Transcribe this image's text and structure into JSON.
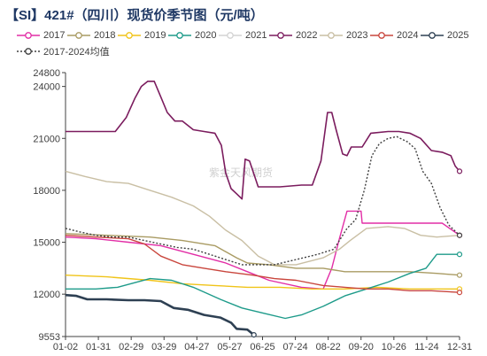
{
  "title": "【SI】421#（四川）现货价季节图（元/吨）",
  "chart_data": {
    "type": "line",
    "title": "【SI】421#（四川）现货价季节图（元/吨）",
    "xlabel": "",
    "ylabel": "",
    "ylim": [
      9553,
      24800
    ],
    "yticks": [
      9553,
      12000,
      15000,
      18000,
      21000,
      24000,
      24800
    ],
    "xticks": [
      "01-02",
      "01-31",
      "02-29",
      "03-29",
      "04-27",
      "05-27",
      "06-25",
      "07-24",
      "08-22",
      "09-20",
      "10-26",
      "11-24",
      "12-31"
    ],
    "xlim_day": [
      2,
      366
    ],
    "watermark": "紫金天风期货",
    "legend_position": "top",
    "series": [
      {
        "name": "2017",
        "color": "#e22ea6",
        "dash": "none",
        "width": 1.4,
        "marker": "circle",
        "points": [
          [
            2,
            15300
          ],
          [
            30,
            15200
          ],
          [
            60,
            15000
          ],
          [
            90,
            14800
          ],
          [
            120,
            14300
          ],
          [
            150,
            13800
          ],
          [
            170,
            13300
          ],
          [
            190,
            12800
          ],
          [
            220,
            12400
          ],
          [
            240,
            12300
          ],
          [
            248,
            13500
          ],
          [
            255,
            15200
          ],
          [
            262,
            16800
          ],
          [
            275,
            16800
          ],
          [
            276,
            16100
          ],
          [
            300,
            16100
          ],
          [
            330,
            16100
          ],
          [
            350,
            16100
          ],
          [
            366,
            15400
          ]
        ]
      },
      {
        "name": "2018",
        "color": "#a99b63",
        "dash": "none",
        "width": 1.4,
        "marker": "circle",
        "points": [
          [
            2,
            15500
          ],
          [
            40,
            15400
          ],
          [
            80,
            15300
          ],
          [
            110,
            15100
          ],
          [
            140,
            14800
          ],
          [
            160,
            14100
          ],
          [
            170,
            13800
          ],
          [
            190,
            13700
          ],
          [
            215,
            13500
          ],
          [
            240,
            13500
          ],
          [
            260,
            13300
          ],
          [
            280,
            13300
          ],
          [
            300,
            13300
          ],
          [
            320,
            13300
          ],
          [
            345,
            13200
          ],
          [
            366,
            13100
          ]
        ]
      },
      {
        "name": "2019",
        "color": "#f0c419",
        "dash": "none",
        "width": 1.4,
        "marker": "circle",
        "points": [
          [
            2,
            13100
          ],
          [
            40,
            13000
          ],
          [
            80,
            12800
          ],
          [
            110,
            12600
          ],
          [
            140,
            12500
          ],
          [
            170,
            12400
          ],
          [
            200,
            12400
          ],
          [
            230,
            12300
          ],
          [
            260,
            12300
          ],
          [
            290,
            12400
          ],
          [
            320,
            12300
          ],
          [
            345,
            12300
          ],
          [
            366,
            12300
          ]
        ]
      },
      {
        "name": "2020",
        "color": "#1e9b8a",
        "dash": "none",
        "width": 1.4,
        "marker": "circle",
        "points": [
          [
            2,
            12300
          ],
          [
            30,
            12300
          ],
          [
            50,
            12400
          ],
          [
            80,
            12900
          ],
          [
            100,
            12800
          ],
          [
            120,
            12400
          ],
          [
            145,
            11700
          ],
          [
            165,
            11200
          ],
          [
            185,
            10900
          ],
          [
            205,
            10600
          ],
          [
            220,
            10800
          ],
          [
            240,
            11300
          ],
          [
            260,
            11900
          ],
          [
            280,
            12300
          ],
          [
            300,
            12700
          ],
          [
            320,
            13200
          ],
          [
            335,
            13500
          ],
          [
            345,
            14300
          ],
          [
            366,
            14300
          ]
        ]
      },
      {
        "name": "2021",
        "color": "#d3d3d3",
        "dash": "none",
        "width": 1.4,
        "marker": "circle",
        "points": []
      },
      {
        "name": "2022",
        "color": "#7b1c5e",
        "dash": "none",
        "width": 1.6,
        "marker": "circle",
        "points": [
          [
            2,
            21400
          ],
          [
            30,
            21400
          ],
          [
            48,
            21400
          ],
          [
            58,
            22200
          ],
          [
            66,
            23300
          ],
          [
            72,
            24000
          ],
          [
            78,
            24300
          ],
          [
            84,
            24300
          ],
          [
            90,
            23400
          ],
          [
            96,
            22500
          ],
          [
            103,
            22000
          ],
          [
            110,
            22000
          ],
          [
            120,
            21500
          ],
          [
            130,
            21400
          ],
          [
            140,
            21300
          ],
          [
            146,
            20600
          ],
          [
            150,
            19000
          ],
          [
            155,
            18100
          ],
          [
            160,
            17800
          ],
          [
            165,
            17500
          ],
          [
            168,
            19800
          ],
          [
            172,
            19700
          ],
          [
            180,
            18200
          ],
          [
            200,
            18200
          ],
          [
            220,
            18300
          ],
          [
            230,
            18300
          ],
          [
            238,
            19700
          ],
          [
            244,
            22500
          ],
          [
            248,
            22500
          ],
          [
            252,
            21500
          ],
          [
            258,
            20100
          ],
          [
            262,
            20000
          ],
          [
            266,
            20500
          ],
          [
            276,
            20500
          ],
          [
            284,
            21300
          ],
          [
            300,
            21400
          ],
          [
            310,
            21400
          ],
          [
            320,
            21300
          ],
          [
            330,
            21000
          ],
          [
            340,
            20300
          ],
          [
            350,
            20200
          ],
          [
            358,
            20000
          ],
          [
            362,
            19400
          ],
          [
            366,
            19100
          ]
        ]
      },
      {
        "name": "2023",
        "color": "#c9bfa4",
        "dash": "none",
        "width": 1.4,
        "marker": "circle",
        "points": [
          [
            2,
            19100
          ],
          [
            20,
            18800
          ],
          [
            40,
            18500
          ],
          [
            60,
            18400
          ],
          [
            80,
            18000
          ],
          [
            100,
            17600
          ],
          [
            120,
            17100
          ],
          [
            135,
            16500
          ],
          [
            150,
            15700
          ],
          [
            165,
            15100
          ],
          [
            180,
            14200
          ],
          [
            195,
            13700
          ],
          [
            215,
            13700
          ],
          [
            240,
            14100
          ],
          [
            255,
            14600
          ],
          [
            265,
            15100
          ],
          [
            280,
            15800
          ],
          [
            300,
            15900
          ],
          [
            315,
            15800
          ],
          [
            330,
            15400
          ],
          [
            345,
            15300
          ],
          [
            366,
            15400
          ]
        ]
      },
      {
        "name": "2024",
        "color": "#c9463d",
        "dash": "none",
        "width": 1.4,
        "marker": "circle",
        "points": [
          [
            2,
            15400
          ],
          [
            30,
            15300
          ],
          [
            60,
            15200
          ],
          [
            75,
            14900
          ],
          [
            90,
            14200
          ],
          [
            110,
            13700
          ],
          [
            130,
            13500
          ],
          [
            150,
            13300
          ],
          [
            175,
            13100
          ],
          [
            195,
            12900
          ],
          [
            215,
            12800
          ],
          [
            240,
            12500
          ],
          [
            260,
            12400
          ],
          [
            280,
            12300
          ],
          [
            300,
            12300
          ],
          [
            320,
            12200
          ],
          [
            340,
            12200
          ],
          [
            366,
            12100
          ]
        ]
      },
      {
        "name": "2025",
        "color": "#2e4053",
        "dash": "none",
        "width": 2.6,
        "marker": "circle",
        "points": [
          [
            2,
            11950
          ],
          [
            12,
            11900
          ],
          [
            22,
            11700
          ],
          [
            40,
            11700
          ],
          [
            60,
            11650
          ],
          [
            75,
            11650
          ],
          [
            90,
            11600
          ],
          [
            102,
            11200
          ],
          [
            115,
            11100
          ],
          [
            130,
            10800
          ],
          [
            145,
            10650
          ],
          [
            155,
            10350
          ],
          [
            160,
            10000
          ],
          [
            170,
            9950
          ],
          [
            176,
            9650
          ]
        ]
      },
      {
        "name": "2017-2024均值",
        "color": "#404040",
        "dash": "2,2",
        "width": 1.4,
        "marker": "circle",
        "points": [
          [
            2,
            15800
          ],
          [
            15,
            15600
          ],
          [
            30,
            15400
          ],
          [
            45,
            15300
          ],
          [
            60,
            15300
          ],
          [
            75,
            15100
          ],
          [
            90,
            14900
          ],
          [
            105,
            14700
          ],
          [
            120,
            14600
          ],
          [
            135,
            14300
          ],
          [
            150,
            14000
          ],
          [
            165,
            13700
          ],
          [
            180,
            13700
          ],
          [
            195,
            13700
          ],
          [
            215,
            14000
          ],
          [
            235,
            14300
          ],
          [
            250,
            14600
          ],
          [
            262,
            15800
          ],
          [
            270,
            16300
          ],
          [
            278,
            18000
          ],
          [
            285,
            20000
          ],
          [
            292,
            20700
          ],
          [
            300,
            21000
          ],
          [
            308,
            21100
          ],
          [
            318,
            20800
          ],
          [
            325,
            20400
          ],
          [
            332,
            19100
          ],
          [
            340,
            18400
          ],
          [
            348,
            17000
          ],
          [
            356,
            16000
          ],
          [
            366,
            15400
          ]
        ]
      }
    ]
  }
}
